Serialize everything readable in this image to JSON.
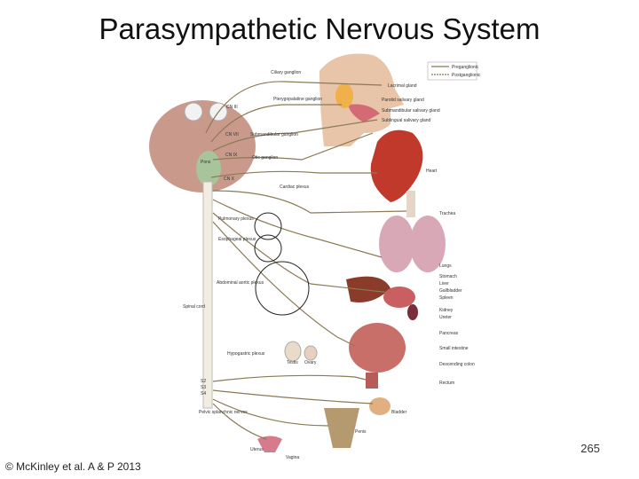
{
  "title": "Parasympathetic Nervous System",
  "legend": [
    "Preganglionic",
    "Postganglionic"
  ],
  "labels": [
    "Ciliary ganglion",
    "Lacrimal gland",
    "CN III",
    "Pterygopalatine ganglion",
    "Parotid salivary gland",
    "Submandibular salivary gland",
    "Sublingual salivary gland",
    "CN VII",
    "Submandibular ganglion",
    "CN IX",
    "Otic ganglion",
    "Pons",
    "Heart",
    "CN X",
    "Cardiac plexus",
    "Trachea",
    "Pulmonary plexus",
    "Esophageal plexus",
    "Lungs",
    "Abdominal aortic plexus",
    "Stomach",
    "Liver",
    "Gallbladder",
    "Spleen",
    "Kidney",
    "Ureter",
    "Spinal cord",
    "Pancreas",
    "Small intestine",
    "Descending colon",
    "Hypogastric plexus",
    "Testis",
    "Ovary",
    "Rectum",
    "S2",
    "S3",
    "S4",
    "Pelvic splanchnic nerves",
    "Bladder",
    "Penis",
    "Uterus",
    "Vagina"
  ],
  "page_number": "265",
  "credit": "© McKinley et al. A & P 2013"
}
